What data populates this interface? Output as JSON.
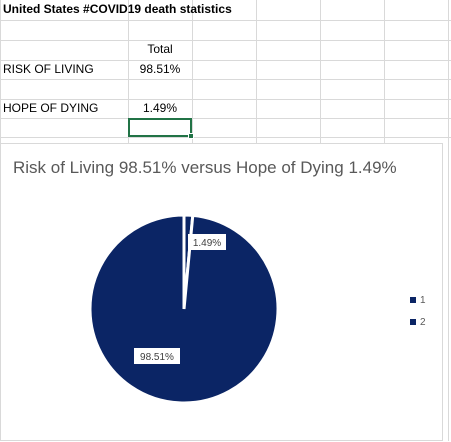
{
  "sheet": {
    "title": "United States #COVID19 death statistics",
    "column_header": "Total",
    "rows": [
      {
        "label": "RISK OF LIVING",
        "value": "98.51%"
      },
      {
        "label": "HOPE OF DYING",
        "value": "1.49%"
      }
    ]
  },
  "chart": {
    "title": "Risk of Living 98.51% versus Hope of Dying 1.49%",
    "slice_color": "#0b2565",
    "separator_color": "#ffffff",
    "legend": [
      "1",
      "2"
    ],
    "labels": [
      "1.49%",
      "98.51%"
    ]
  },
  "chart_data": {
    "type": "pie",
    "title": "Risk of Living 98.51% versus Hope of Dying 1.49%",
    "categories": [
      "1",
      "2"
    ],
    "values": [
      1.49,
      98.51
    ],
    "data_labels": [
      "1.49%",
      "98.51%"
    ],
    "legend_position": "right"
  }
}
